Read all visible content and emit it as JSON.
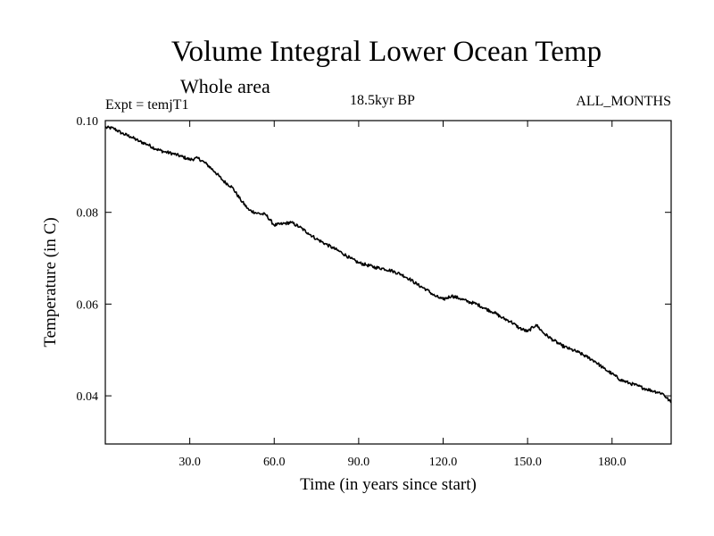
{
  "header": {
    "title": "Volume Integral Lower Ocean Temp",
    "subtitle": "Whole area",
    "experiment": "Expt = temjT1",
    "period": "18.5kyr BP",
    "months": "ALL_MONTHS"
  },
  "chart_data": {
    "type": "line",
    "title": "Volume Integral Lower Ocean Temp",
    "xlabel": "Time (in years since start)",
    "ylabel": "Temperature (in C)",
    "xlim": [
      0,
      201
    ],
    "ylim": [
      0.0295,
      0.1
    ],
    "x_ticks": [
      30,
      60,
      90,
      120,
      150,
      180
    ],
    "x_tick_labels": [
      "30.0",
      "60.0",
      "90.0",
      "120.0",
      "150.0",
      "180.0"
    ],
    "y_ticks": [
      0.04,
      0.06,
      0.08,
      0.1
    ],
    "y_tick_labels": [
      "0.04",
      "0.06",
      "0.08",
      "0.10"
    ],
    "grid": false,
    "series": [
      {
        "name": "temjT1",
        "x": [
          0,
          3,
          6,
          9,
          12,
          15,
          18,
          21,
          24,
          27,
          30,
          33,
          36,
          39,
          42,
          45,
          48,
          51,
          54,
          57,
          60,
          63,
          66,
          69,
          72,
          75,
          78,
          81,
          84,
          87,
          90,
          93,
          96,
          99,
          102,
          105,
          108,
          111,
          114,
          117,
          120,
          123,
          126,
          129,
          132,
          135,
          138,
          141,
          144,
          147,
          150,
          153,
          156,
          159,
          162,
          165,
          168,
          171,
          174,
          177,
          180,
          183,
          186,
          189,
          192,
          195,
          198,
          201
        ],
        "values": [
          0.0985,
          0.0983,
          0.0972,
          0.0965,
          0.0955,
          0.0948,
          0.0938,
          0.0932,
          0.0928,
          0.0922,
          0.0915,
          0.0918,
          0.0905,
          0.0888,
          0.0868,
          0.0855,
          0.0828,
          0.0805,
          0.0798,
          0.0795,
          0.0772,
          0.0775,
          0.0778,
          0.0768,
          0.0755,
          0.0742,
          0.0732,
          0.0722,
          0.0712,
          0.07,
          0.069,
          0.0685,
          0.068,
          0.0677,
          0.0672,
          0.0665,
          0.0655,
          0.0642,
          0.0632,
          0.0618,
          0.061,
          0.0618,
          0.0612,
          0.0605,
          0.06,
          0.059,
          0.0582,
          0.057,
          0.0562,
          0.0548,
          0.054,
          0.0555,
          0.0535,
          0.0522,
          0.051,
          0.0502,
          0.0495,
          0.0485,
          0.0475,
          0.046,
          0.0448,
          0.0435,
          0.0428,
          0.0422,
          0.0415,
          0.041,
          0.0405,
          0.0385
        ]
      }
    ]
  }
}
